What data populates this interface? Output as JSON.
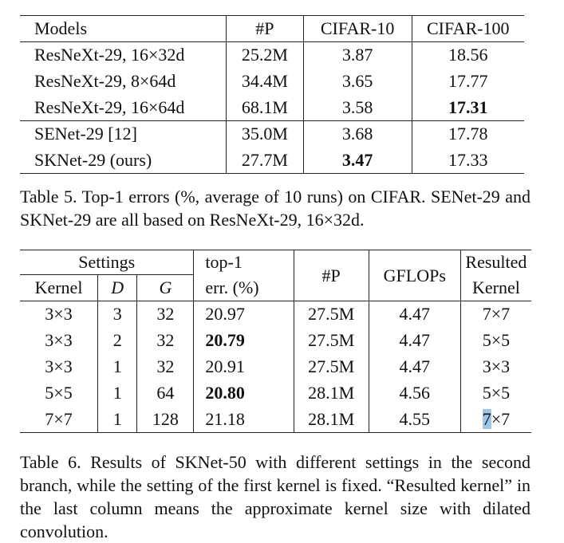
{
  "table5": {
    "headers": [
      "Models",
      "#P",
      "CIFAR-10",
      "CIFAR-100"
    ],
    "rows": [
      {
        "model": "ResNeXt-29, 16×32d",
        "params": "25.2M",
        "cifar10": "3.87",
        "cifar100": "18.56"
      },
      {
        "model": "ResNeXt-29, 8×64d",
        "params": "34.4M",
        "cifar10": "3.65",
        "cifar100": "17.77"
      },
      {
        "model": "ResNeXt-29, 16×64d",
        "params": "68.1M",
        "cifar10": "3.58",
        "cifar100": "17.31"
      },
      {
        "model": "SENet-29 [12]",
        "params": "35.0M",
        "cifar10": "3.68",
        "cifar100": "17.78"
      },
      {
        "model": "SKNet-29 (ours)",
        "params": "27.7M",
        "cifar10": "3.47",
        "cifar100": "17.33"
      }
    ],
    "caption": "Table 5. Top-1 errors (%, average of 10 runs) on CIFAR. SENet-29 and SKNet-29 are all based on ResNeXt-29, 16×32d."
  },
  "table6": {
    "headers": {
      "settings": "Settings",
      "kernel": "Kernel",
      "d": "D",
      "g": "G",
      "top1_line1": "top-1",
      "top1_line2": "err. (%)",
      "params": "#P",
      "gflops": "GFLOPs",
      "resulted_line1": "Resulted",
      "resulted_line2": "Kernel"
    },
    "rows": [
      {
        "kernel": "3×3",
        "d": "3",
        "g": "32",
        "err": "20.97",
        "params": "27.5M",
        "gflops": "4.47",
        "resulted": "7×7"
      },
      {
        "kernel": "3×3",
        "d": "2",
        "g": "32",
        "err": "20.79",
        "params": "27.5M",
        "gflops": "4.47",
        "resulted": "5×5"
      },
      {
        "kernel": "3×3",
        "d": "1",
        "g": "32",
        "err": "20.91",
        "params": "27.5M",
        "gflops": "4.47",
        "resulted": "3×3"
      },
      {
        "kernel": "5×5",
        "d": "1",
        "g": "64",
        "err": "20.80",
        "params": "28.1M",
        "gflops": "4.56",
        "resulted": "5×5"
      },
      {
        "kernel": "7×7",
        "d": "1",
        "g": "128",
        "err": "21.18",
        "params": "28.1M",
        "gflops": "4.55",
        "resulted_highlight": "7",
        "resulted_rest": "×7"
      }
    ],
    "caption": "Table 6. Results of SKNet-50 with different settings in the second branch, while the setting of the first kernel is fixed. “Resulted kernel” in the last column means the approximate kernel size with dilated convolution.",
    "highlight_color": "#9cc6ea"
  }
}
